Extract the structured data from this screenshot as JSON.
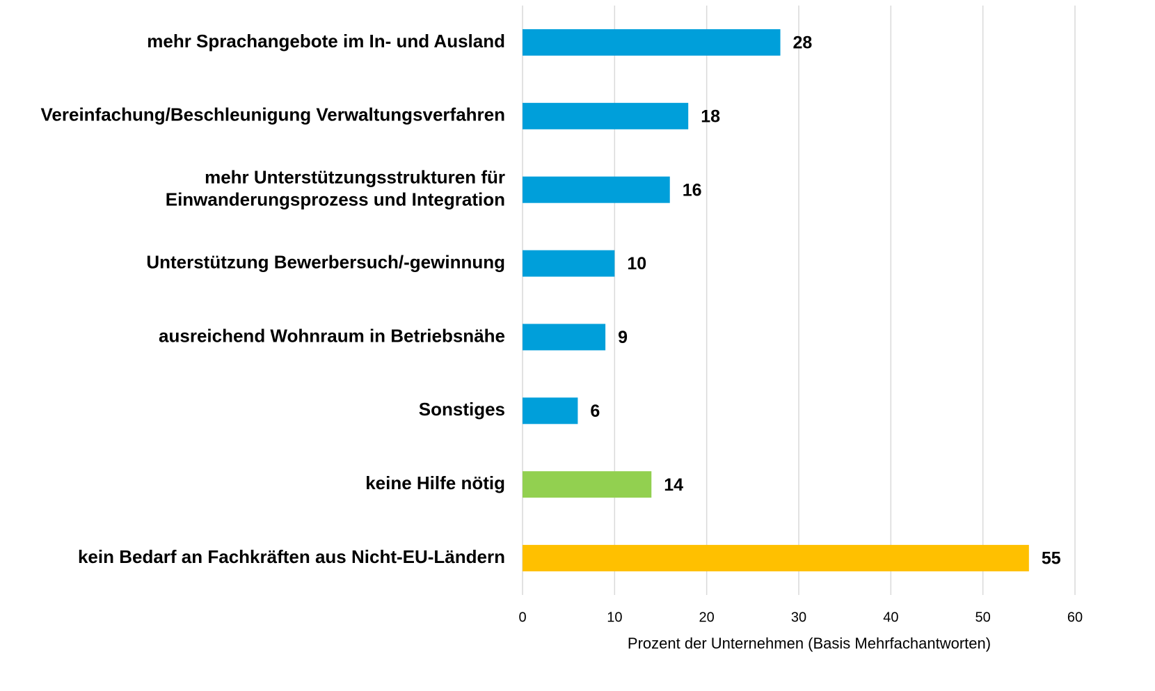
{
  "chart_data": {
    "type": "barh",
    "categories": [
      "mehr Sprachangebote im In- und Ausland",
      "Vereinfachung/Beschleunigung Verwaltungsverfahren",
      "mehr Unterstützungsstrukturen für\nEinwanderungsprozess und Integration",
      "Unterstützung Bewerbersuch/-gewinnung",
      "ausreichend Wohnraum in Betriebsnähe",
      "Sonstiges",
      "keine Hilfe nötig",
      "kein Bedarf an Fachkräften aus Nicht-EU-Ländern"
    ],
    "values": [
      28,
      18,
      16,
      10,
      9,
      6,
      14,
      55
    ],
    "colors": [
      "#009fda",
      "#009fda",
      "#009fda",
      "#009fda",
      "#009fda",
      "#009fda",
      "#92d050",
      "#ffc000"
    ],
    "xlim": [
      0,
      60
    ],
    "xticks": [
      0,
      10,
      20,
      30,
      40,
      50,
      60
    ],
    "xlabel": "Prozent der Unternehmen (Basis Mehrfachantworten)",
    "grid": true
  }
}
